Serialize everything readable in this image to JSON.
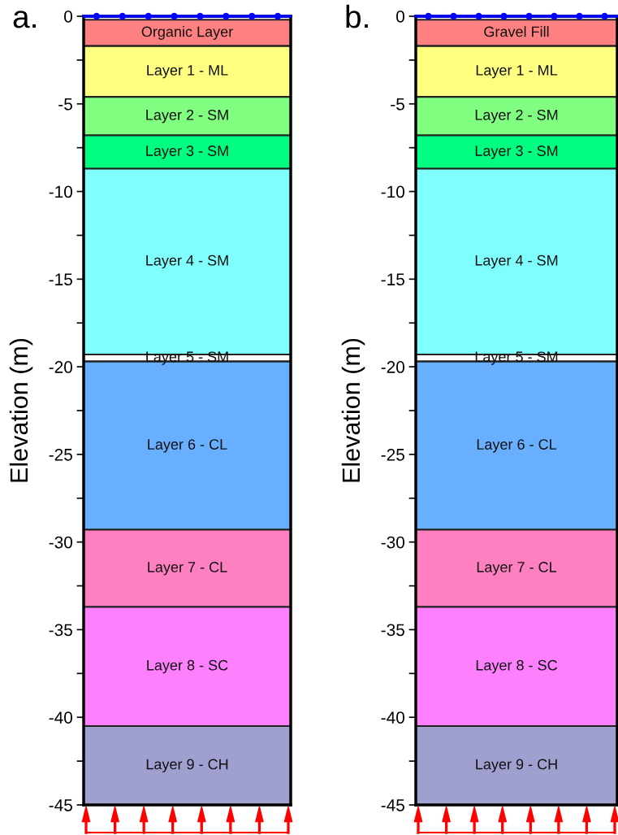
{
  "chart_data": [
    {
      "type": "bar",
      "title": "a.",
      "ylabel": "Elevation (m)",
      "categories": [
        null
      ],
      "tick_labels": "y",
      "grid": false,
      "legend": false,
      "ylim": [
        -45,
        0
      ],
      "yticks": [
        0,
        {
          "value": -2.5,
          "label": null
        },
        -5,
        {
          "value": -7.5,
          "label": null
        },
        -10,
        {
          "value": -12.5,
          "label": null
        },
        -15,
        {
          "value": -17.5,
          "label": null
        },
        -20,
        {
          "value": -22.5,
          "label": null
        },
        -25,
        {
          "value": -27.5,
          "label": null
        },
        -30,
        {
          "value": -32.5,
          "label": null
        },
        -35,
        {
          "value": -37.5,
          "label": null
        },
        -40,
        {
          "value": -42.5,
          "label": null
        },
        -45
      ],
      "ref_lines": [
        {
          "axis": "y",
          "value": 0,
          "color": "#0000ff"
        }
      ],
      "series": [
        {
          "name": "Organic Layer",
          "color": "#ff8080",
          "base": [
            -0.2
          ],
          "values": [
            -1.5
          ]
        },
        {
          "name": "Layer 1 - ML",
          "color": "#ffff80",
          "base": [
            -1.7
          ],
          "values": [
            -2.9
          ]
        },
        {
          "name": "Layer 2 - SM",
          "color": "#80ff80",
          "base": [
            -4.6
          ],
          "values": [
            -2.2
          ]
        },
        {
          "name": "Layer 3 - SM",
          "color": "#00ff80",
          "base": [
            -6.8
          ],
          "values": [
            -1.9
          ]
        },
        {
          "name": "Layer 4 - SM",
          "color": "#80ffff",
          "base": [
            -8.7
          ],
          "values": [
            -10.6
          ]
        },
        {
          "name": "Layer 5 - SM",
          "color": "#ffffff",
          "base": [
            -19.3
          ],
          "values": [
            -0.4
          ]
        },
        {
          "name": "Layer 6 - CL",
          "color": "#68b0ff",
          "base": [
            -19.7
          ],
          "values": [
            -9.6
          ]
        },
        {
          "name": "Layer 7 - CL",
          "color": "#ff80c0",
          "base": [
            -29.3
          ],
          "values": [
            -4.4
          ]
        },
        {
          "name": "Layer 8 - SC",
          "color": "#ff80ff",
          "base": [
            -33.7
          ],
          "values": [
            -6.8
          ]
        },
        {
          "name": "Layer 9 - CH",
          "color": "#a0a0d0",
          "base": [
            -40.5
          ],
          "values": [
            -4.5
          ]
        }
      ]
    },
    {
      "type": "bar",
      "title": "b.",
      "ylabel": "Elevation (m)",
      "categories": [
        null
      ],
      "tick_labels": "y",
      "grid": false,
      "legend": false,
      "ylim": [
        -45,
        0
      ],
      "yticks": [
        0,
        {
          "value": -2.5,
          "label": null
        },
        -5,
        {
          "value": -7.5,
          "label": null
        },
        -10,
        {
          "value": -12.5,
          "label": null
        },
        -15,
        {
          "value": -17.5,
          "label": null
        },
        -20,
        {
          "value": -22.5,
          "label": null
        },
        -25,
        {
          "value": -27.5,
          "label": null
        },
        -30,
        {
          "value": -32.5,
          "label": null
        },
        -35,
        {
          "value": -37.5,
          "label": null
        },
        -40,
        {
          "value": -42.5,
          "label": null
        },
        -45
      ],
      "ref_lines": [
        {
          "axis": "y",
          "value": 0,
          "color": "#0000ff"
        }
      ],
      "series": [
        {
          "name": "Gravel Fill",
          "color": "#ff8080",
          "base": [
            -0.2
          ],
          "values": [
            -1.5
          ]
        },
        {
          "name": "Layer 1 - ML",
          "color": "#ffff80",
          "base": [
            -1.7
          ],
          "values": [
            -2.9
          ]
        },
        {
          "name": "Layer 2 - SM",
          "color": "#80ff80",
          "base": [
            -4.6
          ],
          "values": [
            -2.2
          ]
        },
        {
          "name": "Layer 3 - SM",
          "color": "#00ff80",
          "base": [
            -6.8
          ],
          "values": [
            -1.9
          ]
        },
        {
          "name": "Layer 4 - SM",
          "color": "#80ffff",
          "base": [
            -8.7
          ],
          "values": [
            -10.6
          ]
        },
        {
          "name": "Layer 5 - SM",
          "color": "#ffffff",
          "base": [
            -19.3
          ],
          "values": [
            -0.4
          ]
        },
        {
          "name": "Layer 6 - CL",
          "color": "#68b0ff",
          "base": [
            -19.7
          ],
          "values": [
            -9.6
          ]
        },
        {
          "name": "Layer 7 - CL",
          "color": "#ff80c0",
          "base": [
            -29.3
          ],
          "values": [
            -4.4
          ]
        },
        {
          "name": "Layer 8 - SC",
          "color": "#ff80ff",
          "base": [
            -33.7
          ],
          "values": [
            -6.8
          ]
        },
        {
          "name": "Layer 9 - CH",
          "color": "#a0a0d0",
          "base": [
            -40.5
          ],
          "values": [
            -4.5
          ]
        }
      ]
    }
  ]
}
